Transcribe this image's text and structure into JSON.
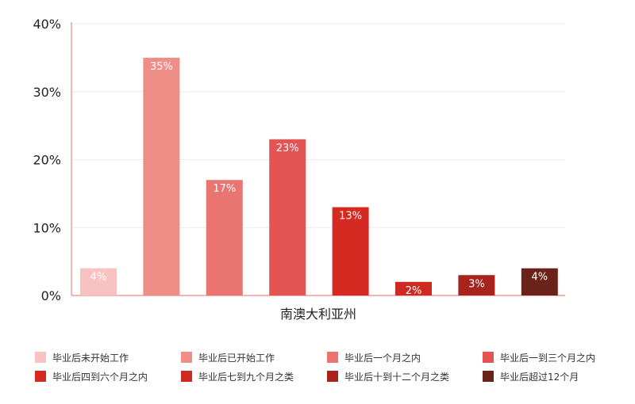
{
  "chart_data": {
    "type": "bar",
    "xlabel": "南澳大利亚州",
    "ylim": [
      0,
      40
    ],
    "yticks": [
      0,
      10,
      20,
      30,
      40
    ],
    "ytick_labels": [
      "0%",
      "10%",
      "20%",
      "30%",
      "40%"
    ],
    "grid": true,
    "legend_position": "bottom",
    "series": [
      {
        "name": "毕业后未开始工作",
        "value": 4,
        "label": "4%",
        "color": "#f9c2c2"
      },
      {
        "name": "毕业后已开始工作",
        "value": 35,
        "label": "35%",
        "color": "#ef8d87"
      },
      {
        "name": "毕业后一个月之内",
        "value": 17,
        "label": "17%",
        "color": "#ea7470"
      },
      {
        "name": "毕业后一到三个月之内",
        "value": 23,
        "label": "23%",
        "color": "#e35452"
      },
      {
        "name": "毕业后四到六个月之内",
        "value": 13,
        "label": "13%",
        "color": "#d42a21"
      },
      {
        "name": "毕业后七到九个月之类",
        "value": 2,
        "label": "2%",
        "color": "#cf2a22"
      },
      {
        "name": "毕业后十到十二个月之类",
        "value": 3,
        "label": "3%",
        "color": "#a8231b"
      },
      {
        "name": "毕业后超过12个月",
        "value": 4,
        "label": "4%",
        "color": "#6b2218"
      }
    ]
  }
}
